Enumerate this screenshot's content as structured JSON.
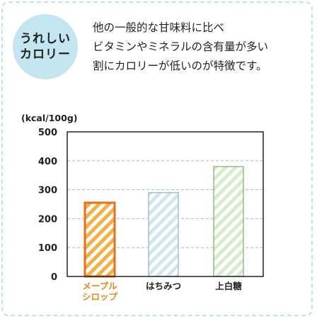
{
  "badge": {
    "line1": "うれしい",
    "line2": "カロリー"
  },
  "description": {
    "line1": "他の一般的な甘味料に比べ",
    "line2": "ビタミンやミネラルの含有量が多い",
    "line3": "割にカロリーが低いのが特徴です。"
  },
  "chart_data": {
    "type": "bar",
    "ylabel": "(kcal/100g)",
    "ylim": [
      0,
      500
    ],
    "yticks": [
      0,
      100,
      200,
      300,
      400,
      500
    ],
    "grid": true,
    "categories": [
      {
        "label_lines": [
          "メープル",
          "シロップ"
        ],
        "value": 255,
        "color": "#e86e1a",
        "stripe": "#f5b041",
        "highlight": true
      },
      {
        "label_lines": [
          "はちみつ"
        ],
        "value": 290,
        "color": "#9cc3cf",
        "stripe": "#cfe7ee",
        "highlight": false
      },
      {
        "label_lines": [
          "上白糖"
        ],
        "value": 380,
        "color": "#9aba86",
        "stripe": "#d9ebcd",
        "highlight": false
      }
    ],
    "colors": {
      "axis": "#222222",
      "grid": "#b8b8b8",
      "highlight_label": "#e8891f",
      "label": "#222222"
    }
  }
}
